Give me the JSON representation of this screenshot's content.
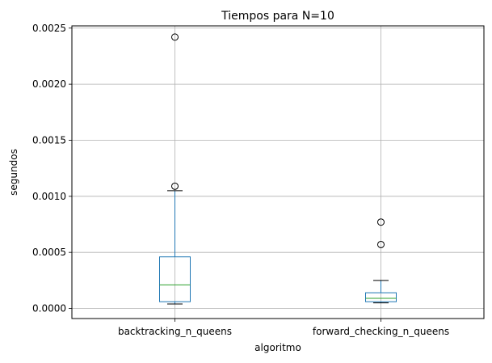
{
  "chart_data": {
    "type": "box",
    "title": "Tiempos para N=10",
    "xlabel": "algoritmo",
    "ylabel": "segundos",
    "ylim": [
      -9e-05,
      0.00252
    ],
    "grid": true,
    "yticks": [
      0.0,
      0.0005,
      0.001,
      0.0015,
      0.002,
      0.0025
    ],
    "ytick_labels": [
      "0.0000",
      "0.0005",
      "0.0010",
      "0.0015",
      "0.0020",
      "0.0025"
    ],
    "categories": [
      "backtracking_n_queens",
      "forward_checking_n_queens"
    ],
    "boxes": [
      {
        "category": "backtracking_n_queens",
        "whisker_low": 4e-05,
        "q1": 6e-05,
        "median": 0.00021,
        "q3": 0.00046,
        "whisker_high": 0.00105,
        "outliers": [
          0.00109,
          0.00242
        ]
      },
      {
        "category": "forward_checking_n_queens",
        "whisker_low": 5e-05,
        "q1": 6e-05,
        "median": 9e-05,
        "q3": 0.00014,
        "whisker_high": 0.00025,
        "outliers": [
          0.00057,
          0.00077
        ]
      }
    ],
    "colors": {
      "box": "#1f77b4",
      "median": "#2ca02c",
      "whisker_cap": "#000000",
      "grid": "#b0b0b0",
      "outlier": "#000000"
    }
  }
}
